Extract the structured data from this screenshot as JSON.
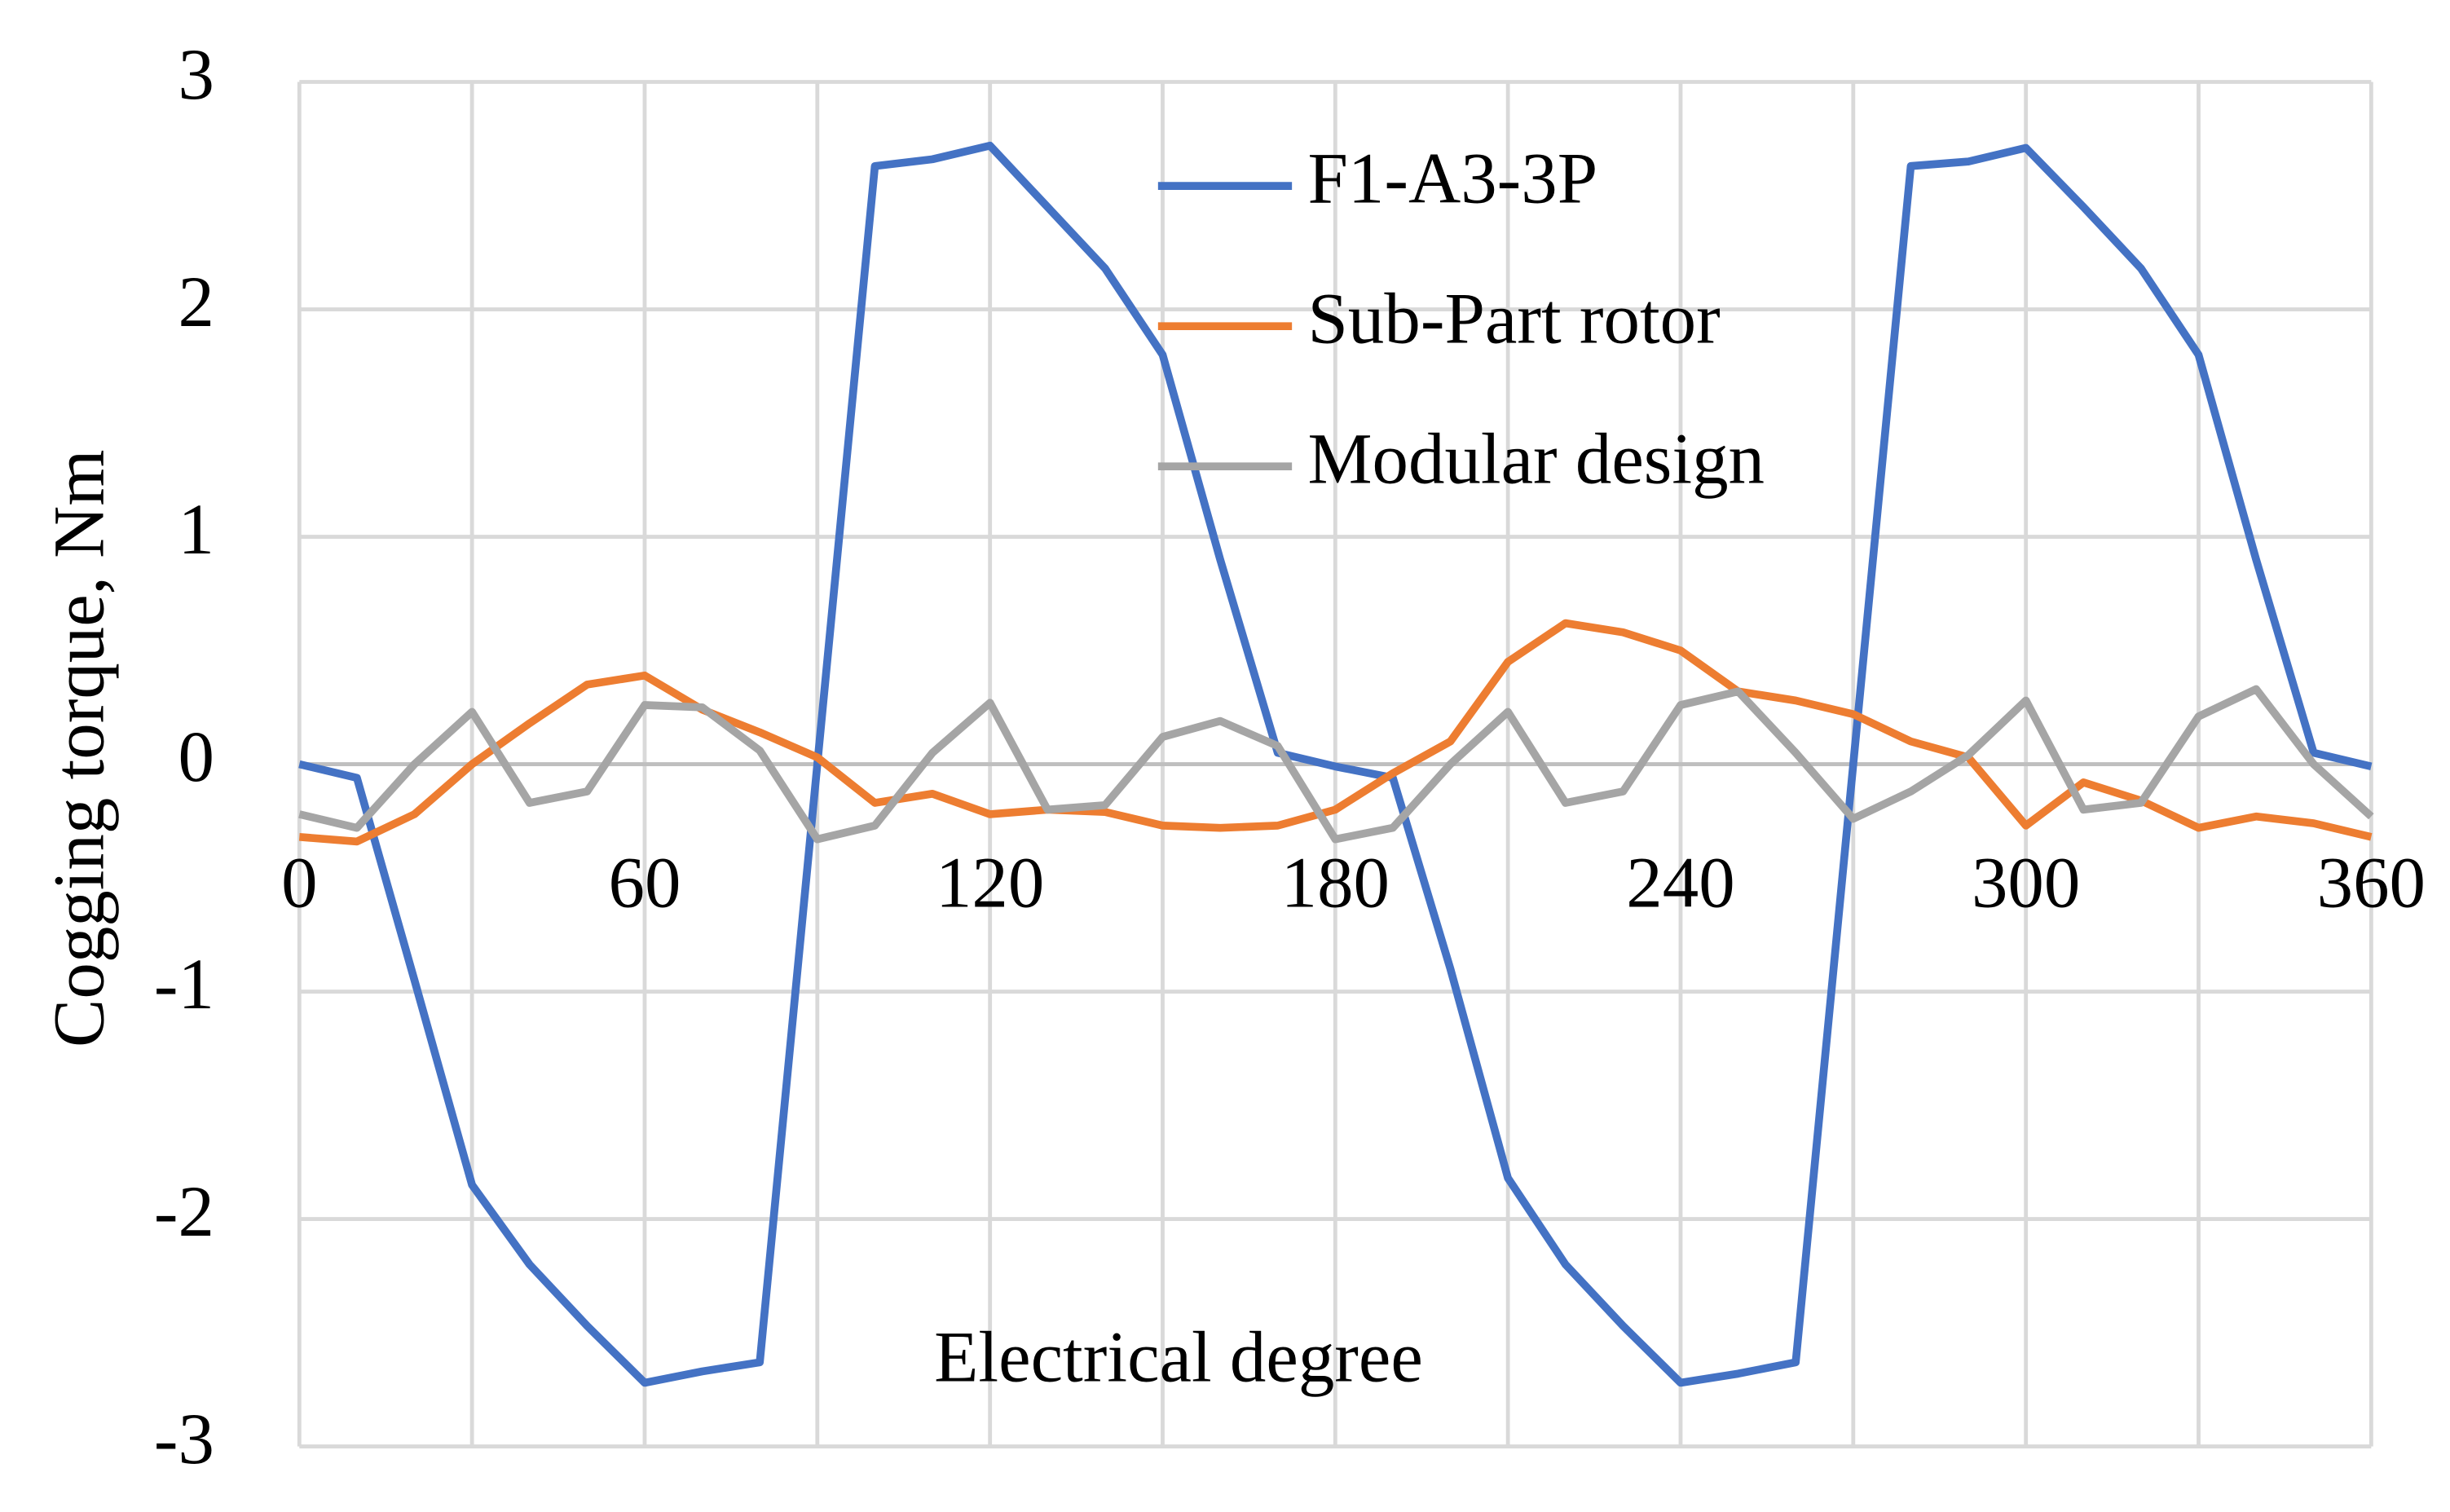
{
  "chart_data": {
    "type": "line",
    "x_label": "Electrical degree",
    "y_label": "Cogging torque, Nm",
    "x": [
      0,
      10,
      20,
      30,
      40,
      50,
      60,
      70,
      80,
      90,
      100,
      110,
      120,
      130,
      140,
      150,
      160,
      170,
      180,
      190,
      200,
      210,
      220,
      230,
      240,
      250,
      260,
      270,
      280,
      290,
      300,
      310,
      320,
      330,
      340,
      350,
      360
    ],
    "series": [
      {
        "name": "F1-A3-3P",
        "color": "#4472c4",
        "values": [
          0,
          -0.06,
          -0.95,
          -1.85,
          -2.2,
          -2.47,
          -2.72,
          -2.67,
          -2.63,
          0,
          2.63,
          2.66,
          2.72,
          2.45,
          2.18,
          1.8,
          0.9,
          0.05,
          -0.01,
          -0.06,
          -0.9,
          -1.82,
          -2.2,
          -2.47,
          -2.72,
          -2.68,
          -2.63,
          0,
          2.63,
          2.65,
          2.71,
          2.45,
          2.18,
          1.8,
          0.9,
          0.05,
          -0.01
        ]
      },
      {
        "name": "Sub-Part rotor",
        "color": "#ed7d31",
        "values": [
          -0.32,
          -0.34,
          -0.22,
          0,
          0.18,
          0.35,
          0.39,
          0.24,
          0.14,
          0.03,
          -0.17,
          -0.13,
          -0.22,
          -0.2,
          -0.21,
          -0.27,
          -0.28,
          -0.27,
          -0.2,
          -0.04,
          0.1,
          0.45,
          0.62,
          0.58,
          0.5,
          0.32,
          0.28,
          0.22,
          0.1,
          0.03,
          -0.27,
          -0.08,
          -0.16,
          -0.28,
          -0.23,
          -0.26,
          -0.32
        ]
      },
      {
        "name": "Modular design",
        "color": "#a5a5a5",
        "values": [
          -0.22,
          -0.28,
          0,
          0.23,
          -0.17,
          -0.12,
          0.26,
          0.25,
          0.06,
          -0.33,
          -0.27,
          0.05,
          0.27,
          -0.2,
          -0.18,
          0.12,
          0.19,
          0.08,
          -0.33,
          -0.28,
          0,
          0.23,
          -0.17,
          -0.12,
          0.26,
          0.32,
          0.05,
          -0.24,
          -0.12,
          0.04,
          0.28,
          -0.2,
          -0.17,
          0.21,
          0.33,
          0,
          -0.23
        ]
      }
    ],
    "xlim": [
      0,
      360
    ],
    "xticks": [
      0,
      60,
      120,
      180,
      240,
      300,
      360
    ],
    "x_minor_grid": [
      30,
      90,
      150,
      210,
      270,
      330
    ],
    "ylim": [
      -3,
      3
    ],
    "yticks": [
      -3,
      -2,
      -1,
      0,
      1,
      2,
      3
    ],
    "grid": true,
    "legend": "top"
  }
}
